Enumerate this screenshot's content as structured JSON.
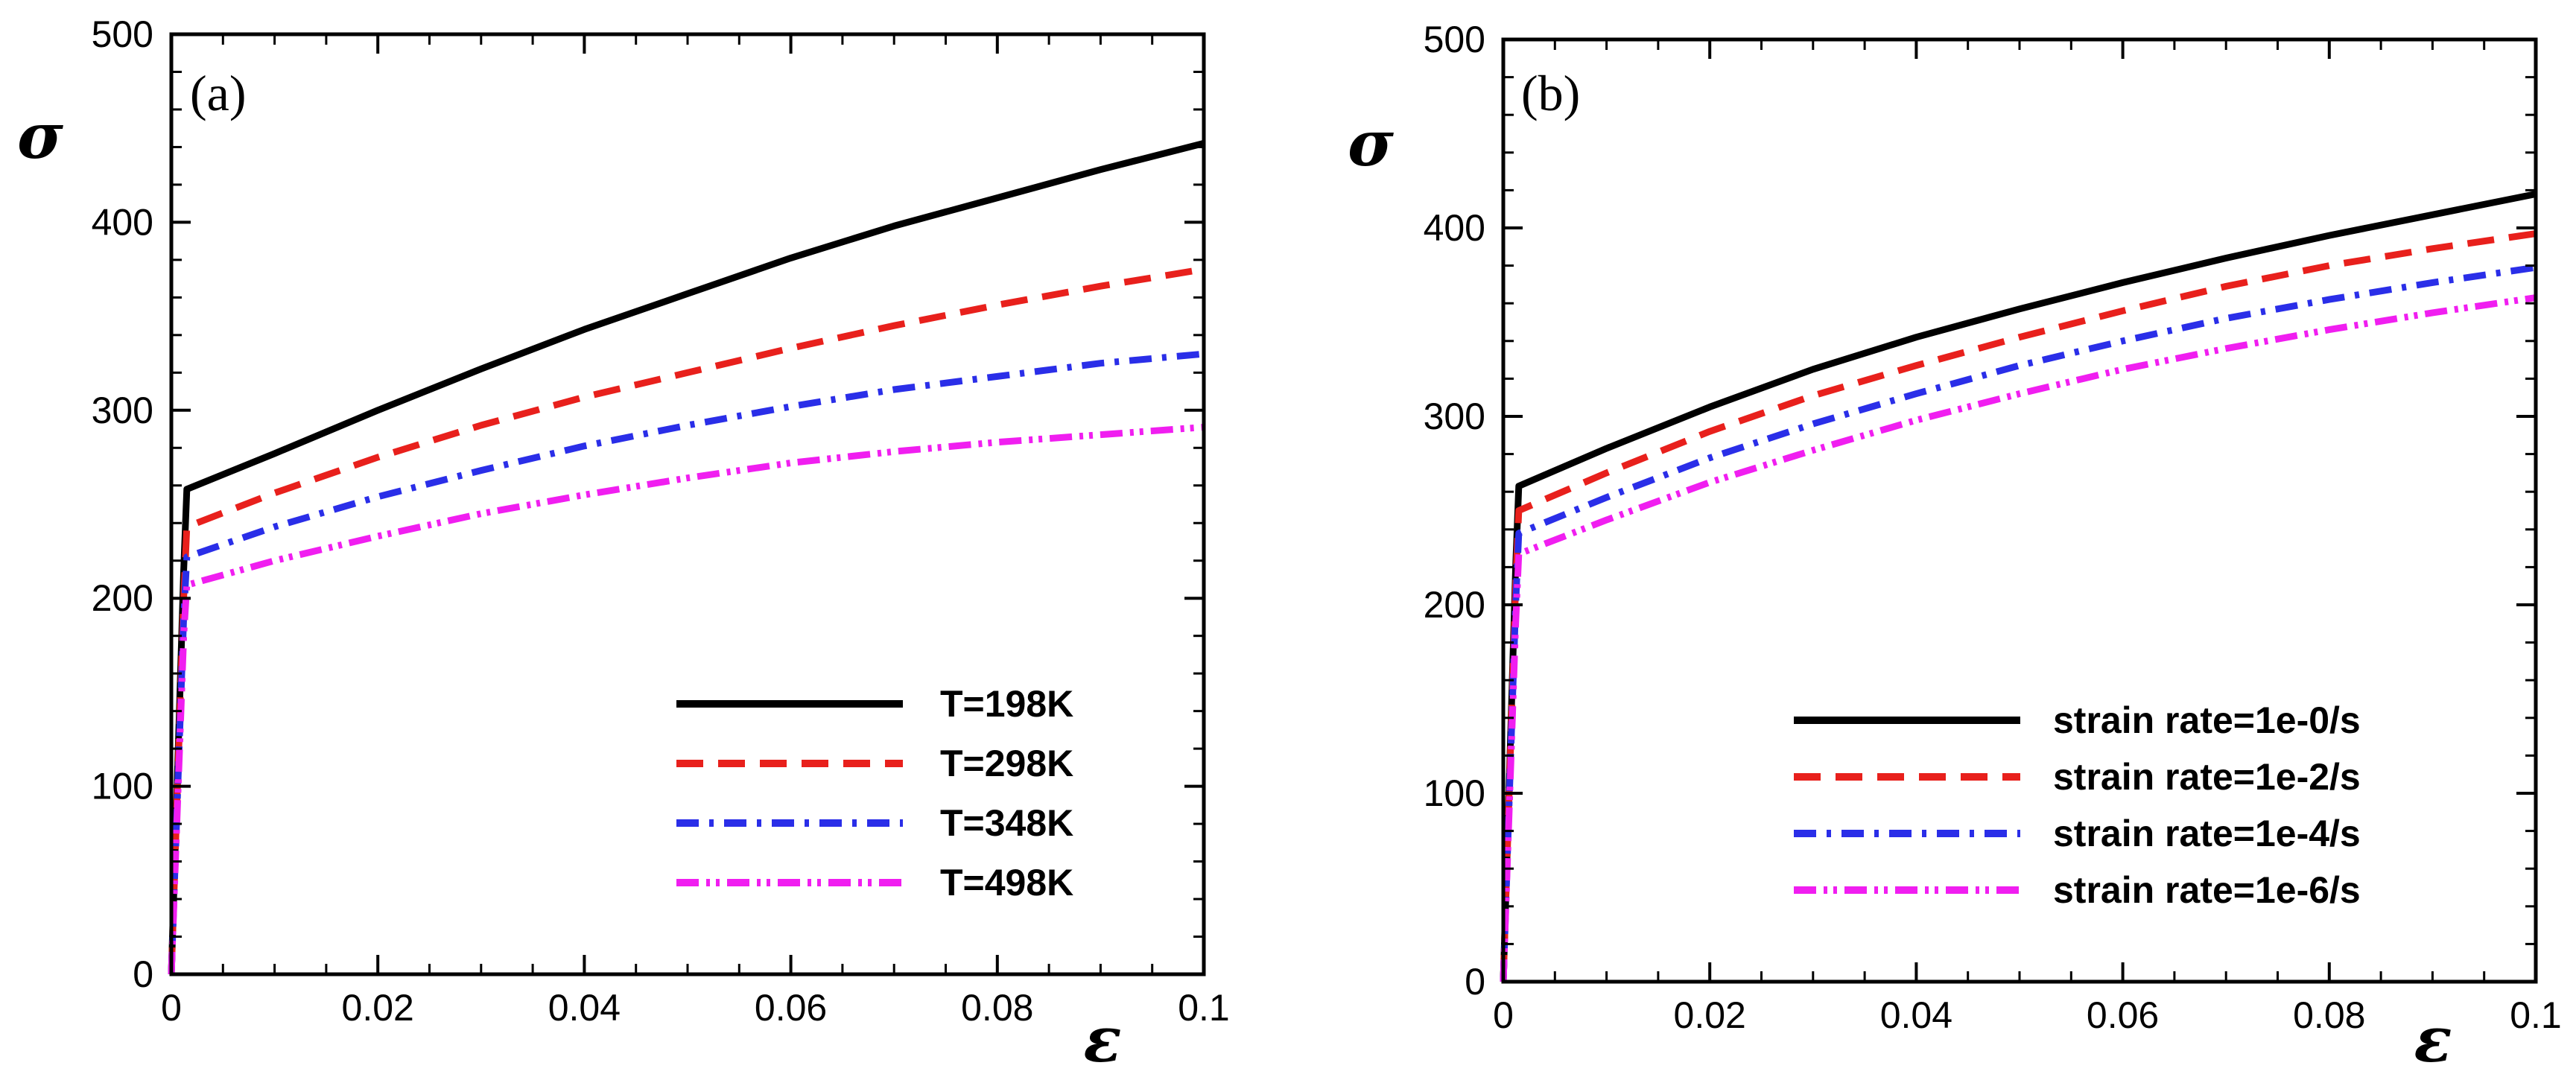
{
  "chart_data": [
    {
      "type": "line",
      "panel_label": "(a)",
      "xlabel": "ε",
      "ylabel": "σ",
      "xlim": [
        0,
        0.1
      ],
      "ylim": [
        0,
        500
      ],
      "xticks": [
        "0",
        "0.02",
        "0.04",
        "0.06",
        "0.08",
        "0.1"
      ],
      "yticks": [
        "0",
        "100",
        "200",
        "300",
        "400",
        "500"
      ],
      "legend_position": "bottom-right",
      "grid": false,
      "series": [
        {
          "name": "T=198K",
          "color": "#000000",
          "style": "solid",
          "points": [
            [
              0,
              0
            ],
            [
              0.0012,
              215
            ],
            [
              0.0015,
              258
            ],
            [
              0.01,
              277
            ],
            [
              0.02,
              300
            ],
            [
              0.03,
              322
            ],
            [
              0.04,
              343
            ],
            [
              0.05,
              362
            ],
            [
              0.06,
              381
            ],
            [
              0.07,
              398
            ],
            [
              0.08,
              413
            ],
            [
              0.09,
              428
            ],
            [
              0.1,
              442
            ]
          ]
        },
        {
          "name": "T=298K",
          "color": "#e8201c",
          "style": "dash",
          "points": [
            [
              0,
              0
            ],
            [
              0.0012,
              200
            ],
            [
              0.0015,
              238
            ],
            [
              0.01,
              256
            ],
            [
              0.02,
              275
            ],
            [
              0.03,
              292
            ],
            [
              0.04,
              307
            ],
            [
              0.05,
              320
            ],
            [
              0.06,
              333
            ],
            [
              0.07,
              345
            ],
            [
              0.08,
              356
            ],
            [
              0.09,
              366
            ],
            [
              0.1,
              375
            ]
          ]
        },
        {
          "name": "T=348K",
          "color": "#2a2ee8",
          "style": "dashdot",
          "points": [
            [
              0,
              0
            ],
            [
              0.0012,
              190
            ],
            [
              0.0015,
              222
            ],
            [
              0.01,
              238
            ],
            [
              0.02,
              254
            ],
            [
              0.03,
              268
            ],
            [
              0.04,
              281
            ],
            [
              0.05,
              292
            ],
            [
              0.06,
              302
            ],
            [
              0.07,
              311
            ],
            [
              0.08,
              318
            ],
            [
              0.09,
              325
            ],
            [
              0.1,
              330
            ]
          ]
        },
        {
          "name": "T=498K",
          "color": "#f01ef0",
          "style": "dashdotdot",
          "points": [
            [
              0,
              0
            ],
            [
              0.0012,
              180
            ],
            [
              0.0015,
              207
            ],
            [
              0.01,
              220
            ],
            [
              0.02,
              233
            ],
            [
              0.03,
              245
            ],
            [
              0.04,
              255
            ],
            [
              0.05,
              264
            ],
            [
              0.06,
              272
            ],
            [
              0.07,
              278
            ],
            [
              0.08,
              283
            ],
            [
              0.09,
              287
            ],
            [
              0.1,
              291
            ]
          ]
        }
      ]
    },
    {
      "type": "line",
      "panel_label": "(b)",
      "xlabel": "ε",
      "ylabel": "σ",
      "xlim": [
        0,
        0.1
      ],
      "ylim": [
        0,
        500
      ],
      "xticks": [
        "0",
        "0.02",
        "0.04",
        "0.06",
        "0.08",
        "0.1"
      ],
      "yticks": [
        "0",
        "100",
        "200",
        "300",
        "400",
        "500"
      ],
      "legend_position": "bottom-right",
      "grid": false,
      "series": [
        {
          "name": "strain rate=1e-0/s",
          "color": "#000000",
          "style": "solid",
          "points": [
            [
              0,
              0
            ],
            [
              0.0012,
              220
            ],
            [
              0.0015,
              263
            ],
            [
              0.01,
              283
            ],
            [
              0.02,
              305
            ],
            [
              0.03,
              325
            ],
            [
              0.04,
              342
            ],
            [
              0.05,
              357
            ],
            [
              0.06,
              371
            ],
            [
              0.07,
              384
            ],
            [
              0.08,
              396
            ],
            [
              0.09,
              407
            ],
            [
              0.1,
              418
            ]
          ]
        },
        {
          "name": "strain rate=1e-2/s",
          "color": "#e8201c",
          "style": "dash",
          "points": [
            [
              0,
              0
            ],
            [
              0.0012,
              210
            ],
            [
              0.0015,
              250
            ],
            [
              0.01,
              270
            ],
            [
              0.02,
              292
            ],
            [
              0.03,
              311
            ],
            [
              0.04,
              327
            ],
            [
              0.05,
              342
            ],
            [
              0.06,
              356
            ],
            [
              0.07,
              369
            ],
            [
              0.08,
              380
            ],
            [
              0.09,
              389
            ],
            [
              0.1,
              397
            ]
          ]
        },
        {
          "name": "strain rate=1e-4/s",
          "color": "#2a2ee8",
          "style": "dashdot",
          "points": [
            [
              0,
              0
            ],
            [
              0.0012,
              200
            ],
            [
              0.0015,
              238
            ],
            [
              0.01,
              257
            ],
            [
              0.02,
              278
            ],
            [
              0.03,
              296
            ],
            [
              0.04,
              312
            ],
            [
              0.05,
              327
            ],
            [
              0.06,
              340
            ],
            [
              0.07,
              352
            ],
            [
              0.08,
              362
            ],
            [
              0.09,
              371
            ],
            [
              0.1,
              379
            ]
          ]
        },
        {
          "name": "strain rate=1e-6/s",
          "color": "#f01ef0",
          "style": "dashdotdot",
          "points": [
            [
              0,
              0
            ],
            [
              0.0012,
              190
            ],
            [
              0.0015,
              227
            ],
            [
              0.01,
              245
            ],
            [
              0.02,
              265
            ],
            [
              0.03,
              282
            ],
            [
              0.04,
              298
            ],
            [
              0.05,
              312
            ],
            [
              0.06,
              325
            ],
            [
              0.07,
              336
            ],
            [
              0.08,
              346
            ],
            [
              0.09,
              355
            ],
            [
              0.1,
              363
            ]
          ]
        }
      ]
    }
  ]
}
